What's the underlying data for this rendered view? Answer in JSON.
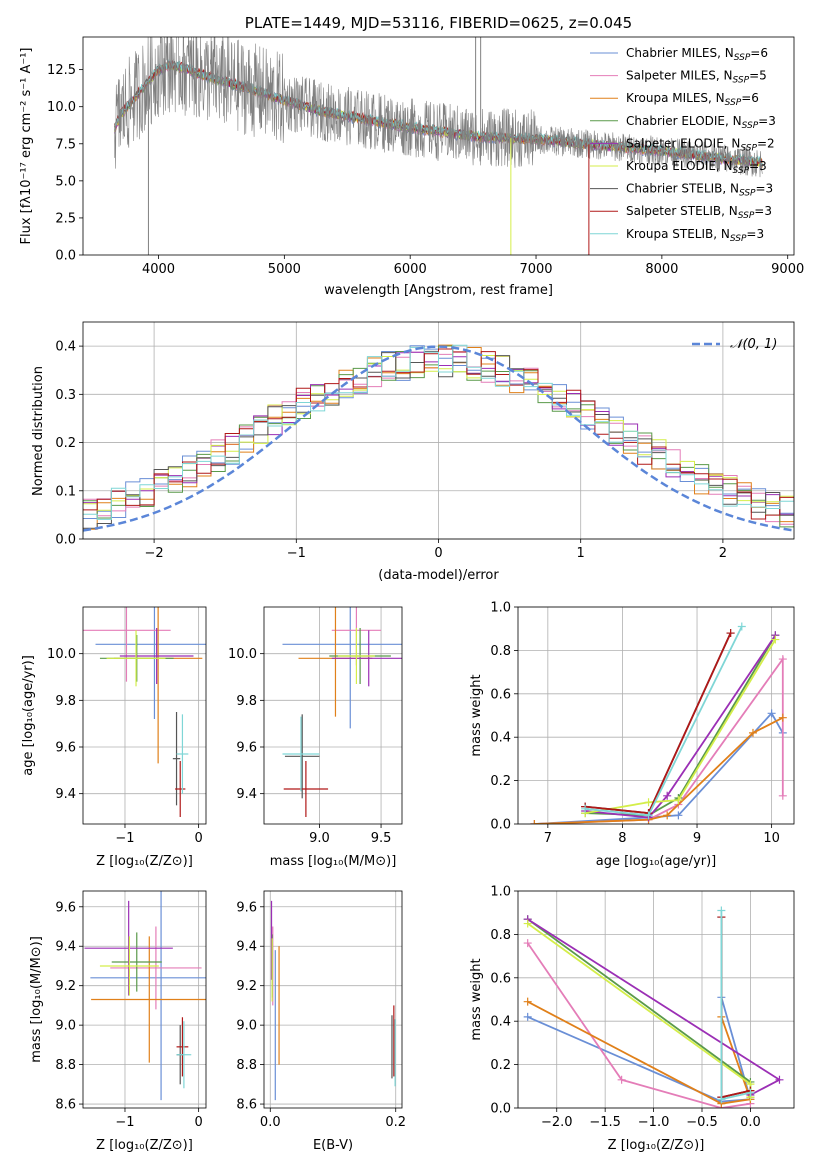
{
  "chart_data": [
    {
      "id": "spectrum",
      "type": "line",
      "title": "PLATE=1449, MJD=53116, FIBERID=0625, z=0.045",
      "xlabel": "wavelength [Angstrom, rest frame]",
      "ylabel": "Flux [fλ10⁻¹⁷ erg cm⁻² s⁻¹ A⁻¹]",
      "xlim": [
        3400,
        9050
      ],
      "ylim": [
        0,
        14.7
      ],
      "xticks": [
        4000,
        5000,
        6000,
        7000,
        8000,
        9000
      ],
      "yticks": [
        0.0,
        2.5,
        5.0,
        7.5,
        10.0,
        12.5
      ],
      "legend_position": "top-right",
      "series": [
        {
          "name": "Chabrier MILES, N_SSP=6",
          "label_main": "Chabrier MILES, N",
          "label_sub": "SSP",
          "label_tail": "=6",
          "color": "#6a8fd6"
        },
        {
          "name": "Salpeter MILES, N_SSP=5",
          "label_main": "Salpeter MILES, N",
          "label_sub": "SSP",
          "label_tail": "=5",
          "color": "#e47db8"
        },
        {
          "name": "Kroupa MILES, N_SSP=6",
          "label_main": "Kroupa MILES, N",
          "label_sub": "SSP",
          "label_tail": "=6",
          "color": "#e0801a"
        },
        {
          "name": "Chabrier ELODIE, N_SSP=3",
          "label_main": "Chabrier ELODIE, N",
          "label_sub": "SSP",
          "label_tail": "=3",
          "color": "#5a9a4a"
        },
        {
          "name": "Salpeter ELODIE, N_SSP=2",
          "label_main": "Salpeter ELODIE, N",
          "label_sub": "SSP",
          "label_tail": "=2",
          "color": "#9b2fb5"
        },
        {
          "name": "Kroupa ELODIE, N_SSP=3",
          "label_main": "Kroupa ELODIE, N",
          "label_sub": "SSP",
          "label_tail": "=3",
          "color": "#d4ee4a"
        },
        {
          "name": "Chabrier STELIB, N_SSP=3",
          "label_main": "Chabrier STELIB, N",
          "label_sub": "SSP",
          "label_tail": "=3",
          "color": "#555555"
        },
        {
          "name": "Salpeter STELIB, N_SSP=3",
          "label_main": "Salpeter STELIB, N",
          "label_sub": "SSP",
          "label_tail": "=3",
          "color": "#b01818"
        },
        {
          "name": "Kroupa STELIB, N_SSP=3",
          "label_main": "Kroupa STELIB, N",
          "label_sub": "SSP",
          "label_tail": "=3",
          "color": "#7fd6d6"
        }
      ],
      "continuum_x": [
        3650,
        3700,
        3800,
        3900,
        4000,
        4100,
        4200,
        4400,
        4600,
        4800,
        5000,
        5300,
        5600,
        6000,
        6500,
        7000,
        7500,
        8000,
        8500,
        8800
      ],
      "continuum_y": [
        8.5,
        9.5,
        10.5,
        11.5,
        12.5,
        12.8,
        12.6,
        12.0,
        11.5,
        11.0,
        10.4,
        9.7,
        9.2,
        8.6,
        8.0,
        7.8,
        7.4,
        7.0,
        6.5,
        6.2
      ],
      "data_color": "#808080"
    },
    {
      "id": "residuals",
      "type": "line",
      "xlabel": "(data-model)/error",
      "ylabel": "Normed distribution",
      "xlim": [
        -2.5,
        2.5
      ],
      "ylim": [
        0,
        0.45
      ],
      "xticks": [
        -2,
        -1,
        0,
        1,
        2
      ],
      "xtick_labels": [
        "−2",
        "−1",
        "0",
        "1",
        "2"
      ],
      "yticks": [
        0.0,
        0.1,
        0.2,
        0.3,
        0.4
      ],
      "grid": true,
      "legend_position": "top-right",
      "reference": {
        "name": "𝒩(0, 1)",
        "mean": 0,
        "sigma": 1,
        "color": "#5b86d8"
      },
      "bin_width": 0.1,
      "gaussian_peak": 0.399
    },
    {
      "id": "age_vs_Z",
      "type": "scatter",
      "xlabel": "Z [log₁₀(Z/Z⊙)]",
      "ylabel": "age  [log₁₀(age/yr)]",
      "xlim": [
        -1.57,
        0.1
      ],
      "ylim": [
        9.27,
        10.2
      ],
      "xticks": [
        -1,
        0
      ],
      "xtick_labels": [
        "−1",
        "0"
      ],
      "yticks": [
        9.4,
        9.6,
        9.8,
        10.0
      ],
      "ytick_labels": [
        "9.4",
        "9.6",
        "9.8",
        "10.0"
      ],
      "points": [
        {
          "series": 0,
          "x": -0.6,
          "xerr": 0.8,
          "y": 10.04,
          "yerr": 0.32
        },
        {
          "series": 1,
          "x": -0.98,
          "xerr": 0.6,
          "y": 10.1,
          "yerr": 0.22
        },
        {
          "series": 2,
          "x": -0.55,
          "xerr": 0.6,
          "y": 9.98,
          "yerr": 0.45
        },
        {
          "series": 3,
          "x": -0.84,
          "xerr": 0.5,
          "y": 9.98,
          "yerr": 0.1
        },
        {
          "series": 4,
          "x": -0.57,
          "xerr": 0.5,
          "y": 9.99,
          "yerr": 0.12
        },
        {
          "series": 5,
          "x": -0.85,
          "xerr": 0.4,
          "y": 9.98,
          "yerr": 0.12
        },
        {
          "series": 6,
          "x": -0.3,
          "xerr": 0.05,
          "y": 9.55,
          "yerr": 0.2
        },
        {
          "series": 7,
          "x": -0.25,
          "xerr": 0.07,
          "y": 9.42,
          "yerr": 0.12
        },
        {
          "series": 8,
          "x": -0.22,
          "xerr": 0.08,
          "y": 9.57,
          "yerr": 0.17
        }
      ]
    },
    {
      "id": "age_vs_mass",
      "type": "scatter",
      "xlabel": "mass [log₁₀(M/M⊙)]",
      "xlim": [
        8.55,
        9.67
      ],
      "ylim": [
        9.27,
        10.2
      ],
      "xticks": [
        9.0,
        9.5
      ],
      "xtick_labels": [
        "9.0",
        "9.5"
      ],
      "yticks": [
        9.4,
        9.6,
        9.8,
        10.0
      ],
      "ytick_labels": [
        "9.4",
        "9.6",
        "9.8",
        "10.0"
      ],
      "points": [
        {
          "series": 0,
          "x": 9.25,
          "xerr": 0.55,
          "y": 10.04,
          "yerr": 0.36
        },
        {
          "series": 1,
          "x": 9.3,
          "xerr": 0.2,
          "y": 10.1,
          "yerr": 0.15
        },
        {
          "series": 2,
          "x": 9.13,
          "xerr": 0.3,
          "y": 9.98,
          "yerr": 0.25
        },
        {
          "series": 3,
          "x": 9.33,
          "xerr": 0.25,
          "y": 9.99,
          "yerr": 0.12
        },
        {
          "series": 4,
          "x": 9.4,
          "xerr": 0.3,
          "y": 9.98,
          "yerr": 0.12
        },
        {
          "series": 5,
          "x": 9.3,
          "xerr": 0.15,
          "y": 9.99,
          "yerr": 0.12
        },
        {
          "series": 6,
          "x": 8.86,
          "xerr": 0.14,
          "y": 9.56,
          "yerr": 0.18
        },
        {
          "series": 7,
          "x": 8.89,
          "xerr": 0.18,
          "y": 9.42,
          "yerr": 0.12
        },
        {
          "series": 8,
          "x": 8.85,
          "xerr": 0.15,
          "y": 9.57,
          "yerr": 0.16
        }
      ]
    },
    {
      "id": "weight_vs_age",
      "type": "line",
      "xlabel": "age  [log₁₀(age/yr)]",
      "ylabel": "mass weight",
      "xlim": [
        6.6,
        10.3
      ],
      "ylim": [
        0,
        1.0
      ],
      "xticks": [
        7,
        8,
        9,
        10
      ],
      "xtick_labels": [
        "7",
        "8",
        "9",
        "10"
      ],
      "yticks": [
        0.0,
        0.2,
        0.4,
        0.6,
        0.8,
        1.0
      ],
      "ytick_labels": [
        "0.0",
        "0.2",
        "0.4",
        "0.6",
        "0.8",
        "1.0"
      ],
      "grid": true,
      "lines": [
        {
          "series": 0,
          "x": [
            6.82,
            8.35,
            8.75,
            10.0,
            10.15
          ],
          "y": [
            0.0,
            0.03,
            0.04,
            0.51,
            0.42
          ]
        },
        {
          "series": 1,
          "x": [
            6.82,
            8.35,
            8.75,
            10.15,
            10.15
          ],
          "y": [
            0.0,
            0.02,
            0.09,
            0.76,
            0.13
          ]
        },
        {
          "series": 2,
          "x": [
            6.82,
            8.35,
            8.6,
            9.75,
            10.15
          ],
          "y": [
            0.0,
            0.02,
            0.04,
            0.42,
            0.49
          ]
        },
        {
          "series": 3,
          "x": [
            7.5,
            8.35,
            8.75,
            10.05
          ],
          "y": [
            0.05,
            0.04,
            0.12,
            0.87
          ]
        },
        {
          "series": 4,
          "x": [
            7.5,
            8.35,
            8.6,
            10.05
          ],
          "y": [
            0.06,
            0.03,
            0.13,
            0.87
          ]
        },
        {
          "series": 5,
          "x": [
            7.5,
            8.35,
            8.75,
            10.05
          ],
          "y": [
            0.05,
            0.1,
            0.11,
            0.85
          ]
        },
        {
          "series": 6,
          "x": [
            7.5,
            8.35,
            9.45
          ],
          "y": [
            0.08,
            0.05,
            0.88
          ]
        },
        {
          "series": 7,
          "x": [
            7.5,
            8.35,
            9.45
          ],
          "y": [
            0.08,
            0.05,
            0.88
          ]
        },
        {
          "series": 8,
          "x": [
            7.5,
            8.35,
            9.6
          ],
          "y": [
            0.07,
            0.04,
            0.91
          ]
        }
      ]
    },
    {
      "id": "mass_vs_Z",
      "type": "scatter",
      "xlabel": "Z [log₁₀(Z/Z⊙)]",
      "ylabel": "mass [log₁₀(M/M⊙)]",
      "xlim": [
        -1.57,
        0.1
      ],
      "ylim": [
        8.58,
        9.68
      ],
      "xticks": [
        -1,
        0
      ],
      "xtick_labels": [
        "−1",
        "0"
      ],
      "yticks": [
        8.6,
        8.8,
        9.0,
        9.2,
        9.4,
        9.6
      ],
      "ytick_labels": [
        "8.6",
        "8.8",
        "9.0",
        "9.2",
        "9.4",
        "9.6"
      ],
      "points": [
        {
          "series": 0,
          "x": -0.51,
          "xerr": 0.96,
          "y": 9.24,
          "yerr": 0.62
        },
        {
          "series": 1,
          "x": -0.58,
          "xerr": 0.62,
          "y": 9.29,
          "yerr": 0.21
        },
        {
          "series": 2,
          "x": -0.67,
          "xerr": 0.79,
          "y": 9.13,
          "yerr": 0.32
        },
        {
          "series": 3,
          "x": -0.84,
          "xerr": 0.34,
          "y": 9.32,
          "yerr": 0.15
        },
        {
          "series": 4,
          "x": -0.95,
          "xerr": 0.6,
          "y": 9.39,
          "yerr": 0.24
        },
        {
          "series": 5,
          "x": -0.94,
          "xerr": 0.4,
          "y": 9.3,
          "yerr": 0.15
        },
        {
          "series": 6,
          "x": -0.25,
          "xerr": 0.05,
          "y": 8.85,
          "yerr": 0.15
        },
        {
          "series": 7,
          "x": -0.22,
          "xerr": 0.08,
          "y": 8.89,
          "yerr": 0.15
        },
        {
          "series": 8,
          "x": -0.2,
          "xerr": 0.1,
          "y": 8.85,
          "yerr": 0.17
        }
      ]
    },
    {
      "id": "mass_vs_ebv",
      "type": "scatter",
      "xlabel": "E(B-V)",
      "xlim": [
        -0.01,
        0.21
      ],
      "ylim": [
        8.58,
        9.68
      ],
      "xticks": [
        0.0,
        0.2
      ],
      "xtick_labels": [
        "0.0",
        "0.2"
      ],
      "yticks": [
        8.6,
        8.8,
        9.0,
        9.2,
        9.4,
        9.6
      ],
      "ytick_labels": [
        "8.6",
        "8.8",
        "9.0",
        "9.2",
        "9.4",
        "9.6"
      ],
      "points": [
        {
          "series": 0,
          "x": 0.008,
          "xerr": 0.0,
          "y": 9.0,
          "yerr": 0.38
        },
        {
          "series": 1,
          "x": 0.004,
          "xerr": 0.0,
          "y": 9.3,
          "yerr": 0.2
        },
        {
          "series": 2,
          "x": 0.014,
          "xerr": 0.0,
          "y": 9.1,
          "yerr": 0.3
        },
        {
          "series": 3,
          "x": 0.003,
          "xerr": 0.0,
          "y": 9.3,
          "yerr": 0.16
        },
        {
          "series": 4,
          "x": 0.002,
          "xerr": 0.0,
          "y": 9.43,
          "yerr": 0.2
        },
        {
          "series": 5,
          "x": 0.003,
          "xerr": 0.0,
          "y": 9.28,
          "yerr": 0.16
        },
        {
          "series": 6,
          "x": 0.194,
          "xerr": 0.0,
          "y": 8.89,
          "yerr": 0.16
        },
        {
          "series": 7,
          "x": 0.197,
          "xerr": 0.0,
          "y": 8.92,
          "yerr": 0.18
        },
        {
          "series": 8,
          "x": 0.199,
          "xerr": 0.0,
          "y": 8.86,
          "yerr": 0.17
        }
      ]
    },
    {
      "id": "weight_vs_Z",
      "type": "line",
      "xlabel": "Z [log₁₀(Z/Z⊙)]",
      "ylabel": "mass weight",
      "xlim": [
        -2.4,
        0.45
      ],
      "ylim": [
        0,
        1.0
      ],
      "xticks": [
        -2.0,
        -1.5,
        -1.0,
        -0.5,
        0.0
      ],
      "xtick_labels": [
        "−2.0",
        "−1.5",
        "−1.0",
        "−0.5",
        "0.0"
      ],
      "yticks": [
        0.0,
        0.2,
        0.4,
        0.6,
        0.8,
        1.0
      ],
      "ytick_labels": [
        "0.0",
        "0.2",
        "0.4",
        "0.6",
        "0.8",
        "1.0"
      ],
      "grid": true,
      "lines": [
        {
          "series": 0,
          "x": [
            -2.3,
            -0.3,
            0.0,
            -0.3
          ],
          "y": [
            0.42,
            0.03,
            0.04,
            0.51
          ]
        },
        {
          "series": 1,
          "x": [
            -2.3,
            -1.33,
            -0.3,
            0.0
          ],
          "y": [
            0.76,
            0.13,
            0.0,
            0.02
          ]
        },
        {
          "series": 2,
          "x": [
            -2.3,
            -0.3,
            0.0,
            -0.3
          ],
          "y": [
            0.49,
            0.02,
            0.04,
            0.42
          ]
        },
        {
          "series": 3,
          "x": [
            -2.3,
            0.0,
            0.0
          ],
          "y": [
            0.87,
            0.12,
            0.05
          ]
        },
        {
          "series": 4,
          "x": [
            -2.3,
            0.3,
            0.0
          ],
          "y": [
            0.87,
            0.13,
            0.06
          ]
        },
        {
          "series": 5,
          "x": [
            -2.3,
            0.0,
            0.0
          ],
          "y": [
            0.85,
            0.11,
            0.05
          ]
        },
        {
          "series": 6,
          "x": [
            -0.3,
            -0.3,
            0.0
          ],
          "y": [
            0.88,
            0.05,
            0.08
          ]
        },
        {
          "series": 7,
          "x": [
            -0.3,
            -0.3,
            0.0
          ],
          "y": [
            0.88,
            0.05,
            0.08
          ]
        },
        {
          "series": 8,
          "x": [
            -0.3,
            -0.3,
            0.0
          ],
          "y": [
            0.91,
            0.04,
            0.07
          ]
        }
      ]
    }
  ]
}
